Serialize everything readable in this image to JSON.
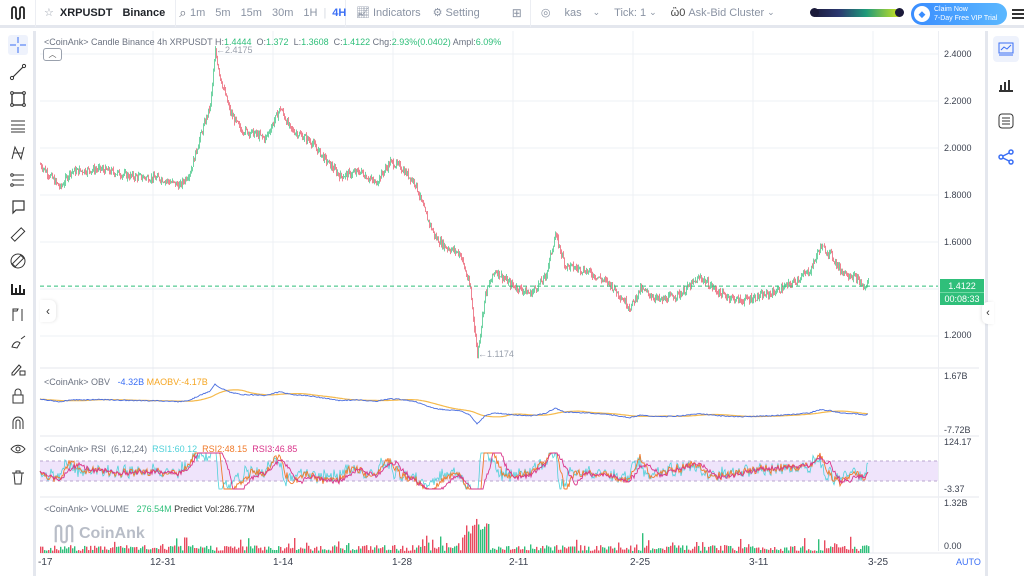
{
  "topbar": {
    "symbol": "XRPUSDT",
    "exchange": "Binance",
    "timeframes": [
      "1m",
      "5m",
      "15m",
      "30m",
      "1H",
      "4H"
    ],
    "active_timeframe": "4H",
    "indicators_label": "Indicators",
    "setting_label": "Setting",
    "kas_label": "kas",
    "tick_label": "Tick:",
    "tick_value": "1",
    "cluster_label": "Ask-Bid Cluster",
    "vip_line1": "Claim Now",
    "vip_line2": "7-Day Free VIP Trial"
  },
  "left_tools": [
    "crosshair-icon",
    "trend-line-icon",
    "rectangle-icon",
    "parallel-lines-icon",
    "pattern-icon",
    "fib-icon",
    "callout-icon",
    "ruler-icon",
    "measure-icon",
    "bar-chart-icon",
    "flag-icon",
    "brush-icon",
    "pencil-lock-icon",
    "lock-icon",
    "magnet-icon",
    "eye-icon",
    "trash-icon"
  ],
  "right_tools": [
    "chart-icon",
    "bars-icon",
    "list-icon",
    "share-icon"
  ],
  "candle_legend": {
    "prefix": "<CoinAnk> Candle  Binance 4h XRPUSDT",
    "H_label": "H:",
    "H": "1.4444",
    "O_label": "O:",
    "O": "1.372",
    "L_label": "L:",
    "L": "1.3608",
    "C_label": "C:",
    "C": "1.4122",
    "chg_label": "Chg:",
    "chg": "2.93%(0.0402)",
    "ampl_label": "Ampl:",
    "ampl": "6.09%"
  },
  "annotations": {
    "high_label": "←2.4175",
    "low_label": "←1.1174"
  },
  "price_axis": [
    "2.4000",
    "2.2000",
    "2.0000",
    "1.8000",
    "1.6000",
    "1.2000"
  ],
  "last_price": "1.4122",
  "countdown": "00:08:33",
  "obv_legend": {
    "prefix": "<CoinAnk> OBV",
    "obv": "-4.32B",
    "maobv_label": "MAOBV:",
    "maobv": "-4.17B"
  },
  "obv_axis": {
    "top": "1.67B",
    "bottom": "-7.72B"
  },
  "rsi_legend": {
    "prefix": "<CoinAnk> RSI",
    "params": "(6,12,24)",
    "rsi1": "RSI1:60.12",
    "rsi2": "RSI2:48.15",
    "rsi3": "RSI3:46.85"
  },
  "rsi_axis": {
    "top": "124.17",
    "bottom": "-3.37"
  },
  "volume_legend": {
    "prefix": "<CoinAnk> VOLUME",
    "vol": "276.54M",
    "predict": "Predict Vol:286.77M"
  },
  "volume_axis": {
    "top": "1.32B",
    "bottom": "0.00"
  },
  "x_axis": [
    "-17",
    "12-31",
    "1-14",
    "1-28",
    "2-11",
    "2-25",
    "3-11",
    "3-25"
  ],
  "auto_label": "AUTO",
  "watermark": "CoinAnk",
  "colors": {
    "up": "#2fbf7a",
    "down": "#e84a5f",
    "accent": "#3b6ff5",
    "obv": "#4a6ee0",
    "maobv": "#f5b94a",
    "rsi1": "#4fd1d9",
    "rsi2": "#f07a2a",
    "rsi3": "#d9348a"
  },
  "chart_data": {
    "type": "line",
    "title": "XRPUSDT Binance 4h",
    "price_path_keypoints": [
      [
        0,
        1.93
      ],
      [
        10,
        1.88
      ],
      [
        20,
        1.83
      ],
      [
        30,
        1.9
      ],
      [
        60,
        1.91
      ],
      [
        90,
        1.88
      ],
      [
        120,
        1.87
      ],
      [
        140,
        1.84
      ],
      [
        150,
        1.9
      ],
      [
        160,
        2.05
      ],
      [
        170,
        2.18
      ],
      [
        175,
        2.41
      ],
      [
        180,
        2.3
      ],
      [
        190,
        2.15
      ],
      [
        200,
        2.08
      ],
      [
        215,
        2.06
      ],
      [
        225,
        2.04
      ],
      [
        240,
        2.17
      ],
      [
        250,
        2.08
      ],
      [
        270,
        2.03
      ],
      [
        285,
        1.95
      ],
      [
        300,
        1.88
      ],
      [
        320,
        1.9
      ],
      [
        335,
        1.85
      ],
      [
        350,
        1.94
      ],
      [
        360,
        1.92
      ],
      [
        375,
        1.85
      ],
      [
        385,
        1.72
      ],
      [
        395,
        1.62
      ],
      [
        405,
        1.58
      ],
      [
        420,
        1.55
      ],
      [
        430,
        1.4
      ],
      [
        437,
        1.12
      ],
      [
        445,
        1.38
      ],
      [
        455,
        1.48
      ],
      [
        470,
        1.42
      ],
      [
        490,
        1.38
      ],
      [
        505,
        1.45
      ],
      [
        515,
        1.63
      ],
      [
        525,
        1.5
      ],
      [
        545,
        1.48
      ],
      [
        570,
        1.42
      ],
      [
        590,
        1.32
      ],
      [
        600,
        1.4
      ],
      [
        620,
        1.35
      ],
      [
        640,
        1.38
      ],
      [
        660,
        1.45
      ],
      [
        680,
        1.38
      ],
      [
        700,
        1.35
      ],
      [
        730,
        1.38
      ],
      [
        750,
        1.42
      ],
      [
        770,
        1.48
      ],
      [
        780,
        1.58
      ],
      [
        790,
        1.55
      ],
      [
        800,
        1.48
      ],
      [
        815,
        1.45
      ],
      [
        825,
        1.4
      ],
      [
        828,
        1.44
      ]
    ],
    "ylim": [
      1.05,
      2.45
    ]
  }
}
